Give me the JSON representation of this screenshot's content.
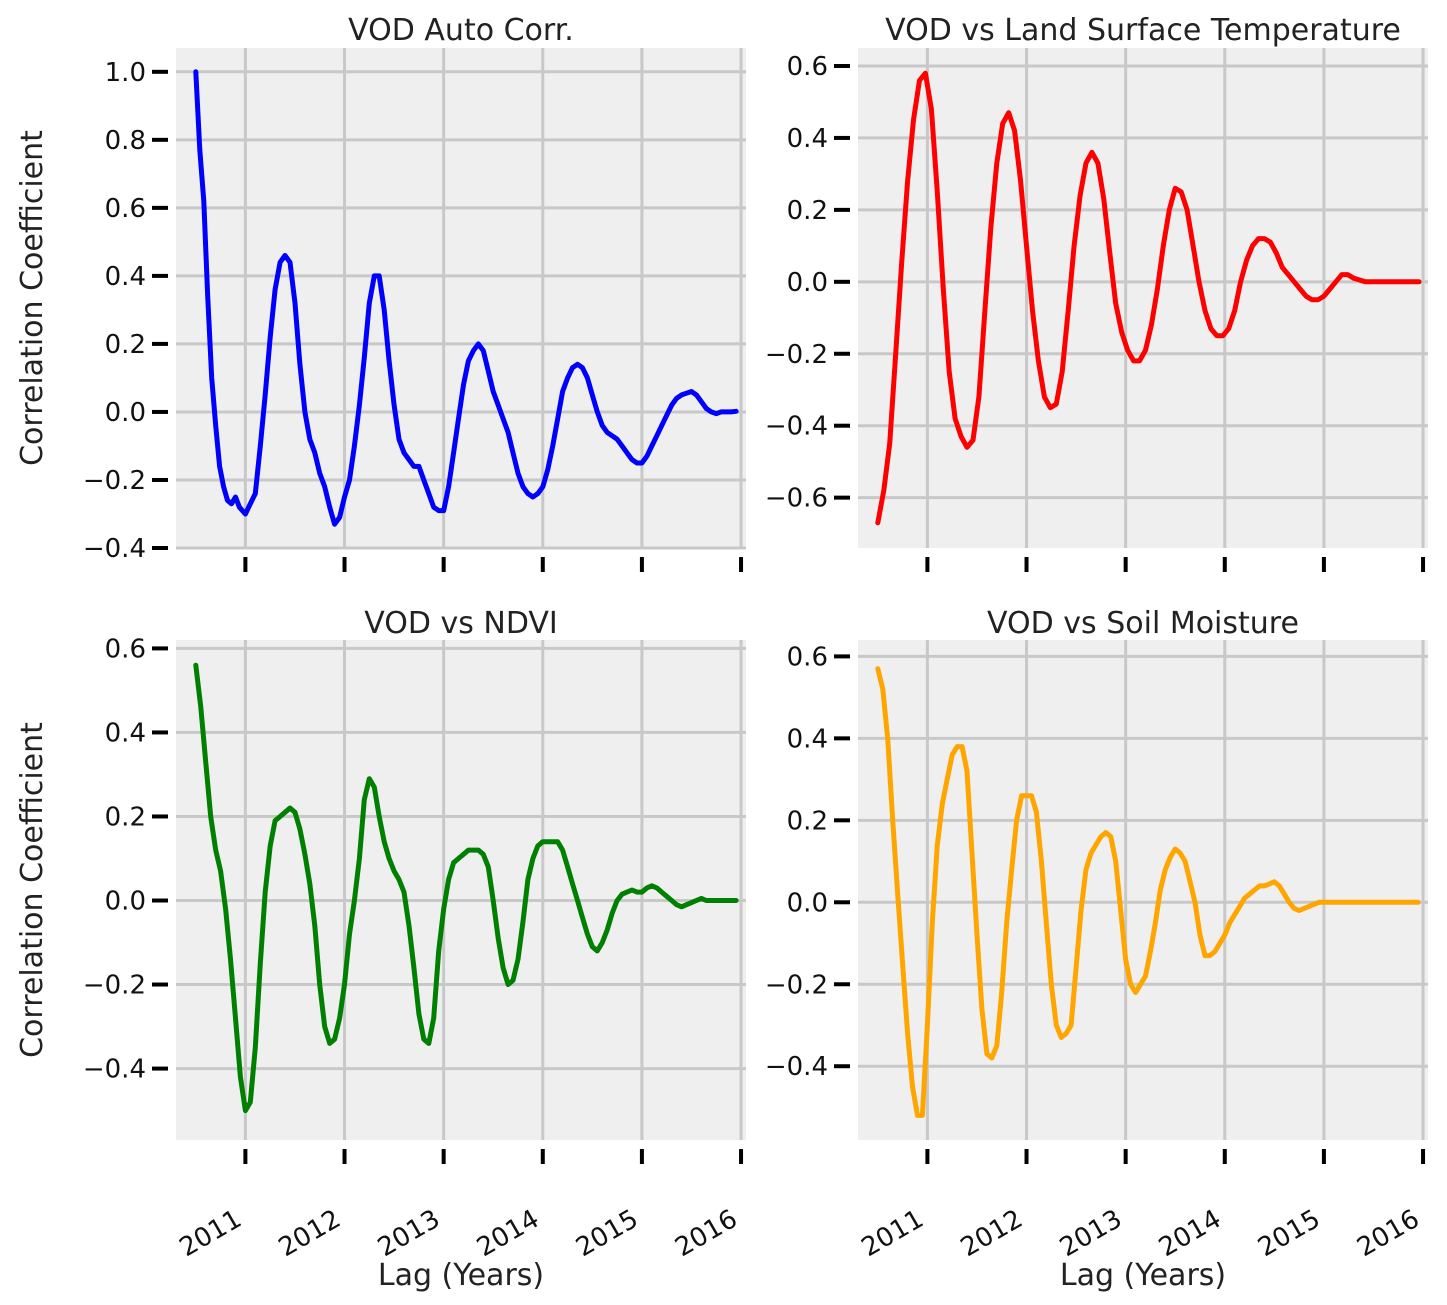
{
  "figure": {
    "xlabel": "Lag (Years)",
    "ylabel": "Correlation Coefficient"
  },
  "chart_data": [
    {
      "type": "line",
      "title": "VOD Auto Corr.",
      "xlabel": "",
      "ylabel": "Correlation Coefficient",
      "color": "#0000ff",
      "x_ticks": [
        "2011",
        "2012",
        "2013",
        "2014",
        "2015",
        "2016"
      ],
      "show_x_tick_labels": false,
      "xlim": [
        2010.3,
        2016.05
      ],
      "ylim": [
        -0.4,
        1.07
      ],
      "y_ticks": [
        -0.4,
        -0.2,
        0.0,
        0.2,
        0.4,
        0.6,
        0.8,
        1.0
      ],
      "y_tick_labels": [
        "−0.4",
        "−0.2",
        "0.0",
        "0.2",
        "0.4",
        "0.6",
        "0.8",
        "1.0"
      ],
      "grid": true,
      "series": [
        {
          "x": [
            2010.5,
            2010.54,
            2010.58,
            2010.62,
            2010.66,
            2010.7,
            2010.74,
            2010.78,
            2010.82,
            2010.86,
            2010.9,
            2010.94,
            2011.0,
            2011.05,
            2011.1,
            2011.15,
            2011.2,
            2011.25,
            2011.3,
            2011.35,
            2011.4,
            2011.45,
            2011.5,
            2011.55,
            2011.6,
            2011.65,
            2011.7,
            2011.75,
            2011.8,
            2011.85,
            2011.9,
            2011.95,
            2012.0,
            2012.05,
            2012.1,
            2012.15,
            2012.2,
            2012.25,
            2012.3,
            2012.35,
            2012.4,
            2012.45,
            2012.5,
            2012.55,
            2012.6,
            2012.65,
            2012.7,
            2012.75,
            2012.8,
            2012.85,
            2012.9,
            2012.95,
            2013.0,
            2013.05,
            2013.1,
            2013.15,
            2013.2,
            2013.25,
            2013.3,
            2013.35,
            2013.4,
            2013.45,
            2013.5,
            2013.55,
            2013.6,
            2013.65,
            2013.7,
            2013.75,
            2013.8,
            2013.85,
            2013.9,
            2013.95,
            2014.0,
            2014.05,
            2014.1,
            2014.15,
            2014.2,
            2014.25,
            2014.3,
            2014.35,
            2014.4,
            2014.45,
            2014.5,
            2014.55,
            2014.6,
            2014.65,
            2014.7,
            2014.75,
            2014.8,
            2014.85,
            2014.9,
            2014.95,
            2015.0,
            2015.05,
            2015.1,
            2015.15,
            2015.2,
            2015.25,
            2015.3,
            2015.35,
            2015.4,
            2015.45,
            2015.5,
            2015.55,
            2015.6,
            2015.65,
            2015.7,
            2015.75,
            2015.8,
            2015.85,
            2015.9,
            2015.95
          ],
          "y": [
            1.0,
            0.77,
            0.62,
            0.34,
            0.1,
            -0.04,
            -0.16,
            -0.22,
            -0.26,
            -0.27,
            -0.25,
            -0.28,
            -0.3,
            -0.27,
            -0.24,
            -0.1,
            0.05,
            0.22,
            0.36,
            0.44,
            0.46,
            0.44,
            0.32,
            0.14,
            0.0,
            -0.08,
            -0.12,
            -0.18,
            -0.22,
            -0.28,
            -0.33,
            -0.31,
            -0.25,
            -0.2,
            -0.1,
            0.02,
            0.16,
            0.32,
            0.4,
            0.4,
            0.3,
            0.15,
            0.02,
            -0.08,
            -0.12,
            -0.14,
            -0.16,
            -0.16,
            -0.2,
            -0.24,
            -0.28,
            -0.29,
            -0.29,
            -0.22,
            -0.12,
            -0.02,
            0.08,
            0.15,
            0.18,
            0.2,
            0.18,
            0.12,
            0.06,
            0.02,
            -0.02,
            -0.06,
            -0.12,
            -0.18,
            -0.22,
            -0.24,
            -0.25,
            -0.24,
            -0.22,
            -0.17,
            -0.1,
            -0.02,
            0.06,
            0.1,
            0.13,
            0.14,
            0.13,
            0.1,
            0.05,
            0.0,
            -0.04,
            -0.06,
            -0.07,
            -0.08,
            -0.1,
            -0.12,
            -0.14,
            -0.15,
            -0.15,
            -0.13,
            -0.1,
            -0.07,
            -0.04,
            -0.01,
            0.02,
            0.04,
            0.05,
            0.055,
            0.06,
            0.05,
            0.03,
            0.01,
            0.0,
            -0.005,
            0.0,
            0.0,
            0.0,
            0.002
          ]
        }
      ]
    },
    {
      "type": "line",
      "title": "VOD vs Land Surface Temperature",
      "xlabel": "",
      "ylabel": "",
      "color": "#ff0000",
      "x_ticks": [
        "2011",
        "2012",
        "2013",
        "2014",
        "2015",
        "2016"
      ],
      "show_x_tick_labels": false,
      "xlim": [
        2010.3,
        2016.05
      ],
      "ylim": [
        -0.74,
        0.65
      ],
      "y_ticks": [
        -0.6,
        -0.4,
        -0.2,
        0.0,
        0.2,
        0.4,
        0.6
      ],
      "y_tick_labels": [
        "−0.6",
        "−0.4",
        "−0.2",
        "0.0",
        "0.2",
        "0.4",
        "0.6"
      ],
      "grid": true,
      "series": [
        {
          "x": [
            2010.5,
            2010.56,
            2010.62,
            2010.68,
            2010.74,
            2010.8,
            2010.86,
            2010.92,
            2010.98,
            2011.04,
            2011.1,
            2011.16,
            2011.22,
            2011.28,
            2011.34,
            2011.4,
            2011.46,
            2011.52,
            2011.58,
            2011.64,
            2011.7,
            2011.76,
            2011.82,
            2011.88,
            2011.94,
            2012.0,
            2012.06,
            2012.12,
            2012.18,
            2012.24,
            2012.3,
            2012.36,
            2012.42,
            2012.48,
            2012.54,
            2012.6,
            2012.66,
            2012.72,
            2012.78,
            2012.84,
            2012.9,
            2012.96,
            2013.02,
            2013.08,
            2013.14,
            2013.2,
            2013.26,
            2013.32,
            2013.38,
            2013.44,
            2013.5,
            2013.56,
            2013.62,
            2013.68,
            2013.74,
            2013.8,
            2013.86,
            2013.92,
            2013.98,
            2014.04,
            2014.1,
            2014.16,
            2014.22,
            2014.28,
            2014.34,
            2014.4,
            2014.46,
            2014.52,
            2014.58,
            2014.64,
            2014.7,
            2014.76,
            2014.82,
            2014.88,
            2014.94,
            2015.0,
            2015.06,
            2015.12,
            2015.18,
            2015.24,
            2015.3,
            2015.36,
            2015.42,
            2015.48,
            2015.54,
            2015.6,
            2015.66,
            2015.72,
            2015.78,
            2015.84,
            2015.9,
            2015.96
          ],
          "y": [
            -0.67,
            -0.58,
            -0.45,
            -0.2,
            0.05,
            0.28,
            0.45,
            0.56,
            0.58,
            0.48,
            0.25,
            -0.02,
            -0.25,
            -0.38,
            -0.43,
            -0.46,
            -0.44,
            -0.32,
            -0.08,
            0.15,
            0.33,
            0.44,
            0.47,
            0.42,
            0.28,
            0.1,
            -0.08,
            -0.22,
            -0.32,
            -0.35,
            -0.34,
            -0.25,
            -0.08,
            0.1,
            0.24,
            0.33,
            0.36,
            0.33,
            0.23,
            0.08,
            -0.06,
            -0.14,
            -0.19,
            -0.22,
            -0.22,
            -0.19,
            -0.12,
            -0.02,
            0.1,
            0.2,
            0.26,
            0.25,
            0.2,
            0.1,
            0.0,
            -0.08,
            -0.13,
            -0.15,
            -0.15,
            -0.13,
            -0.08,
            0.0,
            0.06,
            0.1,
            0.12,
            0.12,
            0.11,
            0.08,
            0.04,
            0.02,
            0.0,
            -0.02,
            -0.04,
            -0.05,
            -0.05,
            -0.04,
            -0.02,
            0.0,
            0.02,
            0.02,
            0.01,
            0.005,
            0.0,
            0.0,
            0.0,
            0.0,
            0.0,
            0.0,
            0.0,
            0.0,
            0.0,
            0.0
          ]
        }
      ]
    },
    {
      "type": "line",
      "title": "VOD vs NDVI",
      "xlabel": "Lag (Years)",
      "ylabel": "Correlation Coefficient",
      "color": "#008000",
      "x_ticks": [
        "2011",
        "2012",
        "2013",
        "2014",
        "2015",
        "2016"
      ],
      "show_x_tick_labels": true,
      "xlim": [
        2010.3,
        2016.05
      ],
      "ylim": [
        -0.57,
        0.62
      ],
      "y_ticks": [
        -0.4,
        -0.2,
        0.0,
        0.2,
        0.4,
        0.6
      ],
      "y_tick_labels": [
        "−0.4",
        "−0.2",
        "0.0",
        "0.2",
        "0.4",
        "0.6"
      ],
      "grid": true,
      "series": [
        {
          "x": [
            2010.5,
            2010.55,
            2010.6,
            2010.65,
            2010.7,
            2010.75,
            2010.8,
            2010.85,
            2010.9,
            2010.95,
            2011.0,
            2011.05,
            2011.1,
            2011.15,
            2011.2,
            2011.25,
            2011.3,
            2011.35,
            2011.4,
            2011.45,
            2011.5,
            2011.55,
            2011.6,
            2011.65,
            2011.7,
            2011.75,
            2011.8,
            2011.85,
            2011.9,
            2011.95,
            2012.0,
            2012.05,
            2012.1,
            2012.15,
            2012.2,
            2012.25,
            2012.3,
            2012.35,
            2012.4,
            2012.45,
            2012.5,
            2012.55,
            2012.6,
            2012.65,
            2012.7,
            2012.75,
            2012.8,
            2012.85,
            2012.9,
            2012.95,
            2013.0,
            2013.05,
            2013.1,
            2013.15,
            2013.2,
            2013.25,
            2013.3,
            2013.35,
            2013.4,
            2013.45,
            2013.5,
            2013.55,
            2013.6,
            2013.65,
            2013.7,
            2013.75,
            2013.8,
            2013.85,
            2013.9,
            2013.95,
            2014.0,
            2014.05,
            2014.1,
            2014.15,
            2014.2,
            2014.25,
            2014.3,
            2014.35,
            2014.4,
            2014.45,
            2014.5,
            2014.55,
            2014.6,
            2014.65,
            2014.7,
            2014.75,
            2014.8,
            2014.85,
            2014.9,
            2014.95,
            2015.0,
            2015.05,
            2015.1,
            2015.15,
            2015.2,
            2015.25,
            2015.3,
            2015.35,
            2015.4,
            2015.45,
            2015.5,
            2015.55,
            2015.6,
            2015.65,
            2015.7,
            2015.75,
            2015.8,
            2015.85,
            2015.9,
            2015.95
          ],
          "y": [
            0.56,
            0.46,
            0.33,
            0.2,
            0.12,
            0.07,
            -0.02,
            -0.14,
            -0.28,
            -0.42,
            -0.5,
            -0.48,
            -0.35,
            -0.15,
            0.02,
            0.13,
            0.19,
            0.2,
            0.21,
            0.22,
            0.21,
            0.17,
            0.11,
            0.04,
            -0.06,
            -0.2,
            -0.3,
            -0.34,
            -0.33,
            -0.28,
            -0.2,
            -0.08,
            0.0,
            0.1,
            0.24,
            0.29,
            0.27,
            0.2,
            0.14,
            0.1,
            0.07,
            0.05,
            0.02,
            -0.06,
            -0.16,
            -0.27,
            -0.33,
            -0.34,
            -0.28,
            -0.12,
            -0.02,
            0.05,
            0.09,
            0.1,
            0.11,
            0.12,
            0.12,
            0.12,
            0.11,
            0.08,
            0.0,
            -0.09,
            -0.16,
            -0.2,
            -0.19,
            -0.14,
            -0.05,
            0.05,
            0.1,
            0.13,
            0.14,
            0.14,
            0.14,
            0.14,
            0.12,
            0.08,
            0.04,
            0.0,
            -0.04,
            -0.08,
            -0.11,
            -0.12,
            -0.1,
            -0.07,
            -0.03,
            0.0,
            0.015,
            0.02,
            0.025,
            0.02,
            0.02,
            0.03,
            0.035,
            0.03,
            0.02,
            0.01,
            0.0,
            -0.01,
            -0.015,
            -0.01,
            -0.005,
            0.0,
            0.005,
            0.0,
            0.0,
            0.0,
            0.0,
            0.0,
            0.0,
            0.0
          ]
        }
      ]
    },
    {
      "type": "line",
      "title": "VOD vs Soil Moisture",
      "xlabel": "Lag (Years)",
      "ylabel": "",
      "color": "#ffa500",
      "x_ticks": [
        "2011",
        "2012",
        "2013",
        "2014",
        "2015",
        "2016"
      ],
      "show_x_tick_labels": true,
      "xlim": [
        2010.3,
        2016.05
      ],
      "ylim": [
        -0.58,
        0.64
      ],
      "y_ticks": [
        -0.4,
        -0.2,
        0.0,
        0.2,
        0.4,
        0.6
      ],
      "y_tick_labels": [
        "−0.4",
        "−0.2",
        "0.0",
        "0.2",
        "0.4",
        "0.6"
      ],
      "grid": true,
      "series": [
        {
          "x": [
            2010.5,
            2010.55,
            2010.6,
            2010.65,
            2010.7,
            2010.75,
            2010.8,
            2010.85,
            2010.9,
            2010.95,
            2011.0,
            2011.05,
            2011.1,
            2011.15,
            2011.2,
            2011.25,
            2011.3,
            2011.35,
            2011.4,
            2011.45,
            2011.5,
            2011.55,
            2011.6,
            2011.65,
            2011.7,
            2011.75,
            2011.8,
            2011.85,
            2011.9,
            2011.95,
            2012.0,
            2012.05,
            2012.1,
            2012.15,
            2012.2,
            2012.25,
            2012.3,
            2012.35,
            2012.4,
            2012.45,
            2012.5,
            2012.55,
            2012.6,
            2012.65,
            2012.7,
            2012.75,
            2012.8,
            2012.85,
            2012.9,
            2012.95,
            2013.0,
            2013.05,
            2013.1,
            2013.15,
            2013.2,
            2013.25,
            2013.3,
            2013.35,
            2013.4,
            2013.45,
            2013.5,
            2013.55,
            2013.6,
            2013.65,
            2013.7,
            2013.75,
            2013.8,
            2013.85,
            2013.9,
            2013.95,
            2014.0,
            2014.05,
            2014.1,
            2014.15,
            2014.2,
            2014.25,
            2014.3,
            2014.35,
            2014.4,
            2014.45,
            2014.5,
            2014.55,
            2014.6,
            2014.65,
            2014.7,
            2014.75,
            2014.8,
            2014.85,
            2014.9,
            2014.95,
            2015.0,
            2015.05,
            2015.1,
            2015.15,
            2015.2,
            2015.25,
            2015.3,
            2015.35,
            2015.4,
            2015.45,
            2015.5,
            2015.55,
            2015.6,
            2015.65,
            2015.7,
            2015.75,
            2015.8,
            2015.85,
            2015.9,
            2015.95
          ],
          "y": [
            0.57,
            0.52,
            0.4,
            0.2,
            0.02,
            -0.15,
            -0.32,
            -0.45,
            -0.52,
            -0.52,
            -0.3,
            -0.05,
            0.14,
            0.24,
            0.3,
            0.36,
            0.38,
            0.38,
            0.32,
            0.12,
            -0.08,
            -0.26,
            -0.37,
            -0.38,
            -0.35,
            -0.22,
            -0.05,
            0.08,
            0.2,
            0.26,
            0.26,
            0.26,
            0.22,
            0.1,
            -0.05,
            -0.2,
            -0.3,
            -0.33,
            -0.32,
            -0.3,
            -0.16,
            -0.02,
            0.08,
            0.12,
            0.14,
            0.16,
            0.17,
            0.16,
            0.1,
            -0.02,
            -0.14,
            -0.2,
            -0.22,
            -0.2,
            -0.18,
            -0.12,
            -0.05,
            0.03,
            0.08,
            0.11,
            0.13,
            0.12,
            0.1,
            0.05,
            0.0,
            -0.08,
            -0.13,
            -0.13,
            -0.12,
            -0.1,
            -0.08,
            -0.05,
            -0.03,
            -0.01,
            0.01,
            0.02,
            0.03,
            0.04,
            0.04,
            0.045,
            0.05,
            0.04,
            0.02,
            0.0,
            -0.015,
            -0.02,
            -0.015,
            -0.01,
            -0.005,
            0.0,
            0.0,
            0.0,
            0.0,
            0.0,
            0.0,
            0.0,
            0.0,
            0.0,
            0.0,
            0.0,
            0.0,
            0.0,
            0.0,
            0.0,
            0.0,
            0.0,
            0.0,
            0.0,
            0.0,
            0.0
          ]
        }
      ]
    }
  ]
}
